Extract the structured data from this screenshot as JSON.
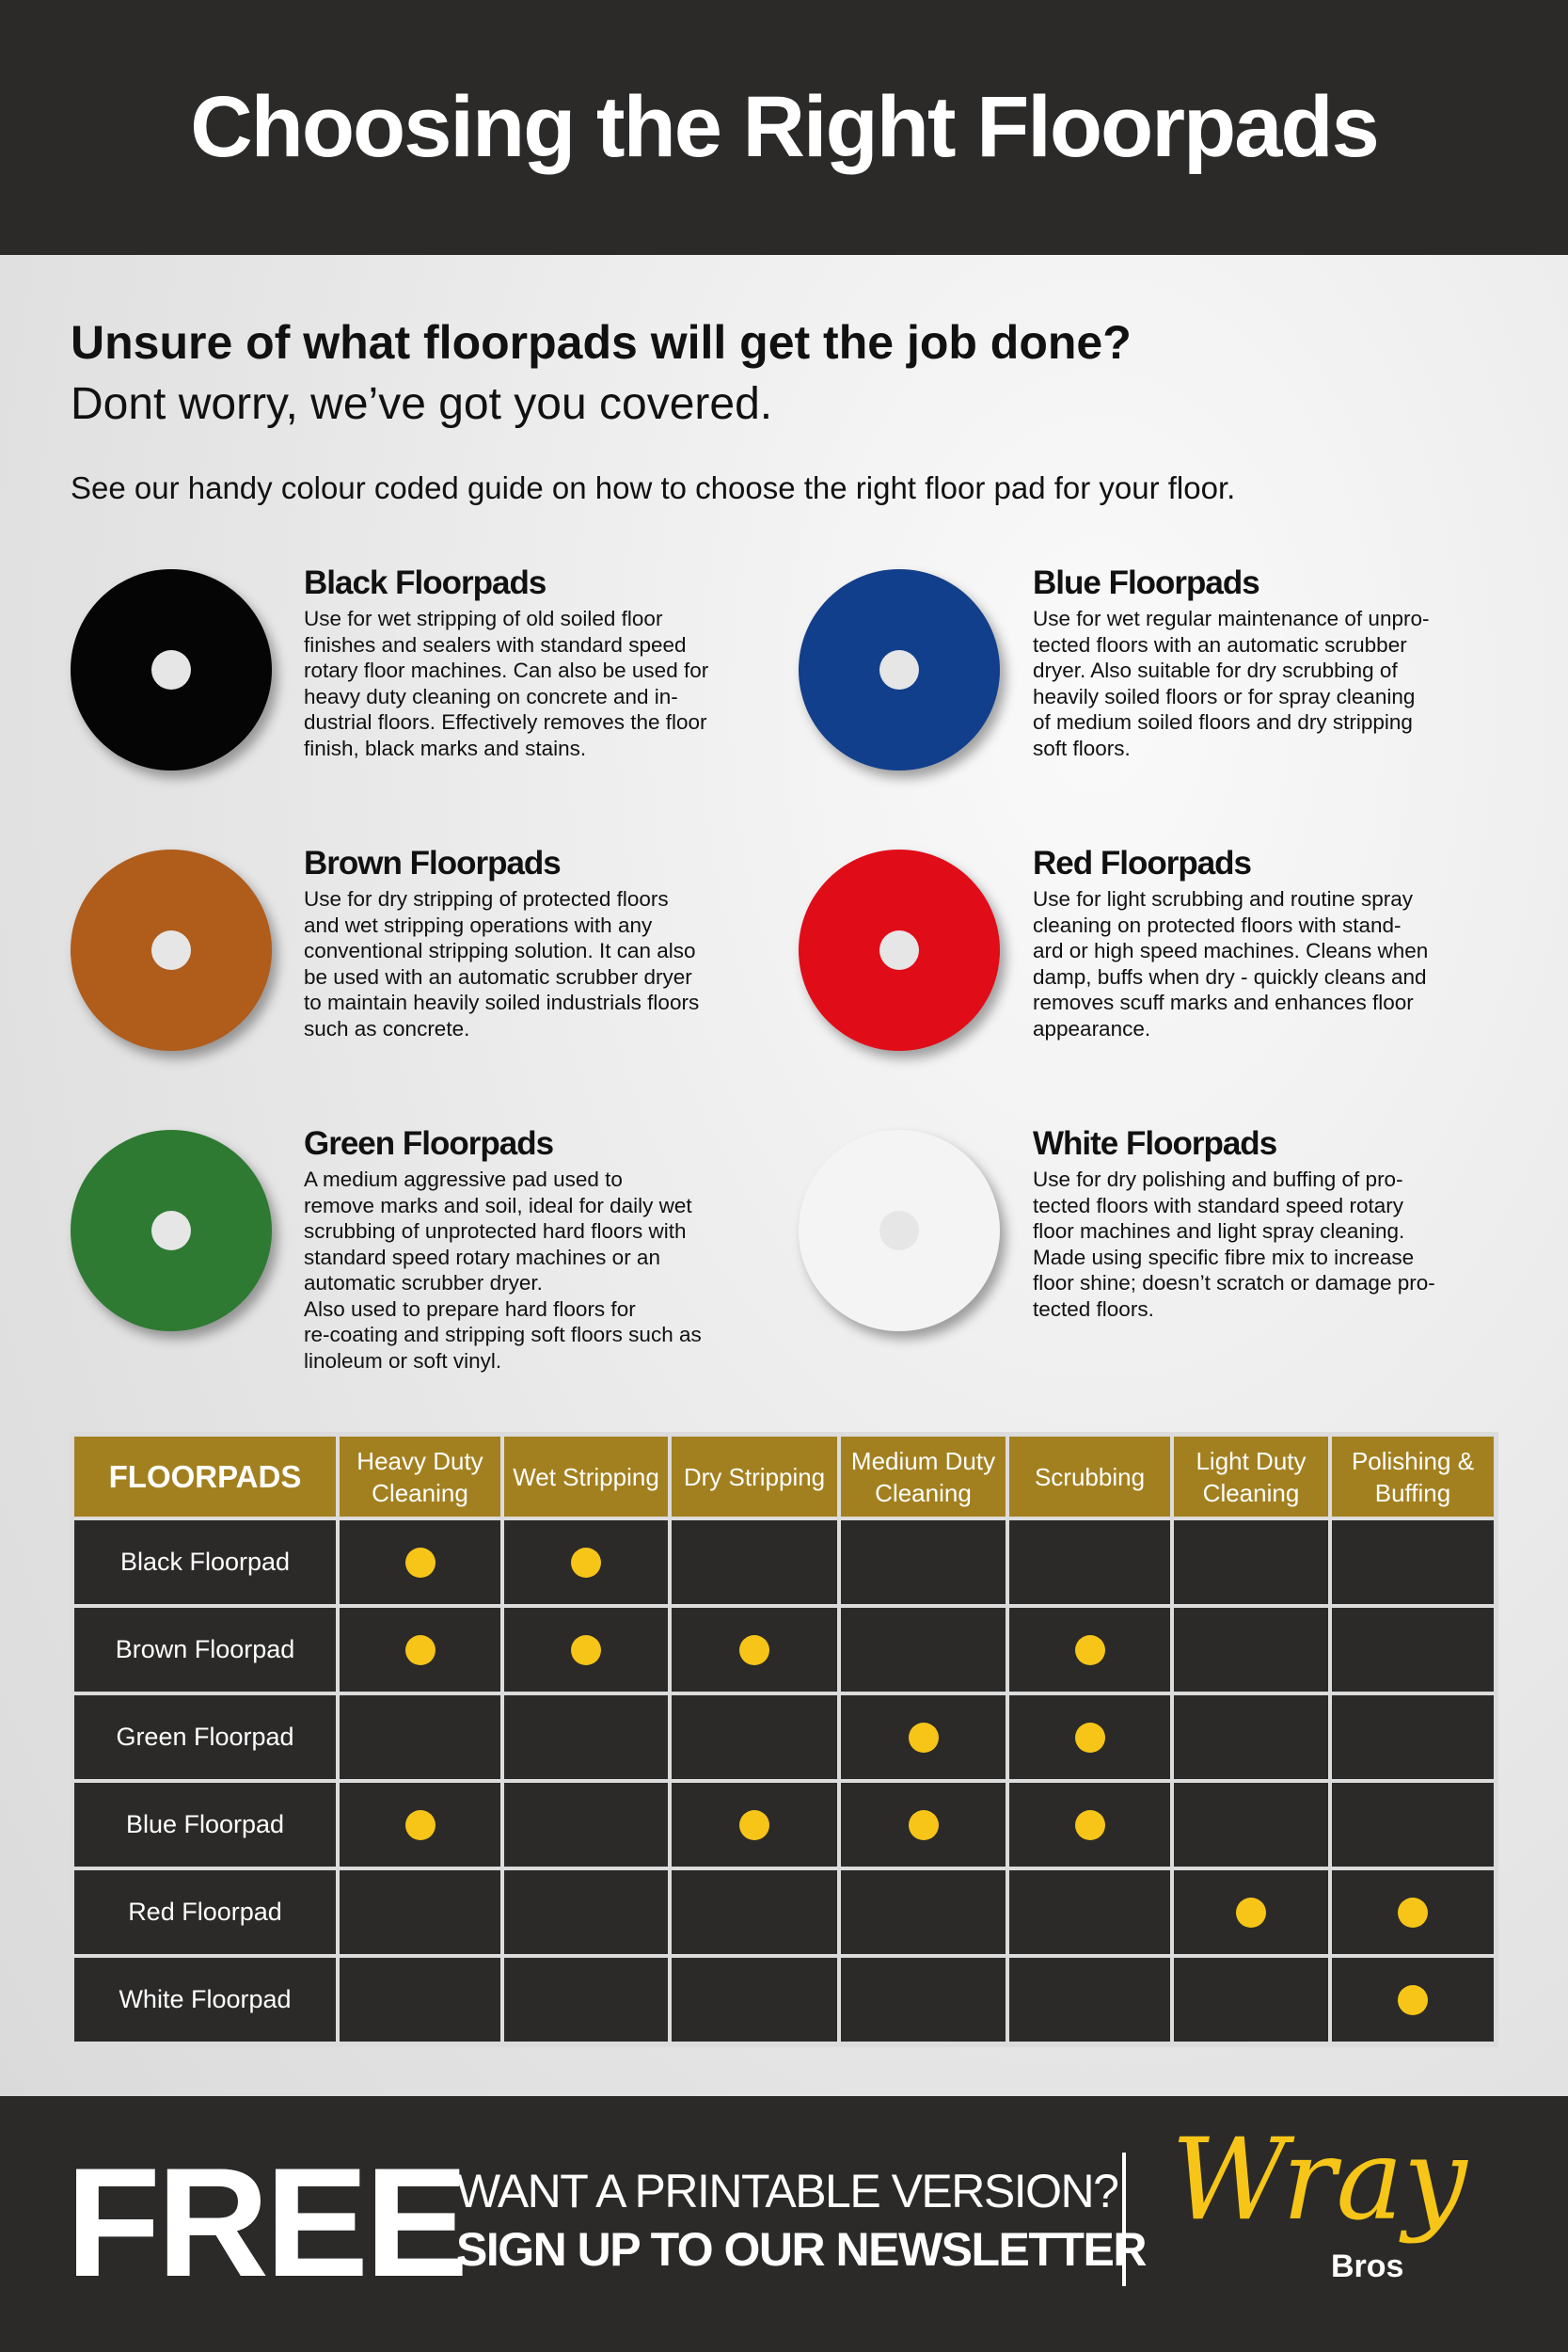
{
  "header": {
    "title": "Choosing the Right Floorpads"
  },
  "intro": {
    "heading": "Unsure of what floorpads will get the job done?",
    "subheading": "Dont worry, we’ve got you covered.",
    "text": "See our handy colour coded guide on how to choose the right floor pad for your floor."
  },
  "pads": [
    {
      "title": "Black Floorpads",
      "color": "#050505",
      "lines": [
        "Use for wet stripping of old soiled floor",
        "finishes and sealers with standard speed",
        "rotary floor machines. Can also be used for",
        "heavy duty cleaning on concrete and in-",
        "dustrial floors. Effectively removes the floor",
        "finish, black marks and stains."
      ]
    },
    {
      "title": "Blue Floorpads",
      "color": "#123f8c",
      "lines": [
        "Use for wet regular maintenance of unpro-",
        "tected floors with an automatic scrubber",
        "dryer. Also suitable for dry scrubbing of",
        "heavily soiled floors or for spray cleaning",
        "of medium soiled floors and dry stripping",
        "soft floors."
      ]
    },
    {
      "title": "Brown Floorpads",
      "color": "#b05c1b",
      "lines": [
        "Use for dry stripping of protected floors",
        "and wet stripping operations with any",
        "conventional stripping solution. It can also",
        "be used with an automatic scrubber dryer",
        "to maintain heavily soiled industrials floors",
        "such as concrete."
      ]
    },
    {
      "title": "Red Floorpads",
      "color": "#e00c18",
      "lines": [
        "Use for light scrubbing and routine spray",
        "cleaning on protected floors with stand-",
        "ard or high speed machines. Cleans when",
        "damp, buffs when dry - quickly cleans and",
        "removes scuff marks and enhances floor",
        "appearance."
      ]
    },
    {
      "title": "Green Floorpads",
      "color": "#2e7a32",
      "lines": [
        "A medium aggressive pad used to",
        "remove marks and soil, ideal for daily wet",
        "scrubbing of unprotected hard floors with",
        "standard speed rotary machines or an",
        "automatic scrubber dryer.",
        "Also used to prepare hard floors for",
        "re-coating and stripping soft floors such as",
        "linoleum or soft vinyl."
      ]
    },
    {
      "title": "White Floorpads",
      "color": "#f4f4f4",
      "lines": [
        "Use for dry polishing and buffing of pro-",
        "tected floors with standard speed rotary",
        "floor machines and light spray cleaning.",
        "Made using specific fibre mix to increase",
        "floor shine; doesn’t scratch or damage pro-",
        "tected floors."
      ]
    }
  ],
  "table": {
    "header": [
      "FLOORPADS",
      "Heavy Duty Cleaning",
      "Wet Stripping",
      "Dry Stripping",
      "Medium Duty Cleaning",
      "Scrubbing",
      "Light Duty Cleaning",
      "Polishing & Buffing"
    ],
    "rows": [
      {
        "name": "Black Floorpad",
        "cells": [
          true,
          true,
          false,
          false,
          false,
          false,
          false
        ]
      },
      {
        "name": "Brown Floorpad",
        "cells": [
          true,
          true,
          true,
          false,
          true,
          false,
          false
        ]
      },
      {
        "name": "Green Floorpad",
        "cells": [
          false,
          false,
          false,
          true,
          true,
          false,
          false
        ]
      },
      {
        "name": "Blue Floorpad",
        "cells": [
          true,
          false,
          true,
          true,
          true,
          false,
          false
        ]
      },
      {
        "name": "Red Floorpad",
        "cells": [
          false,
          false,
          false,
          false,
          false,
          true,
          true
        ]
      },
      {
        "name": "White Floorpad",
        "cells": [
          false,
          false,
          false,
          false,
          false,
          false,
          true
        ]
      }
    ]
  },
  "footer": {
    "free": "FREE",
    "line1": "WANT A PRINTABLE VERSION?",
    "line2": "SIGN UP TO OUR NEWSLETTER",
    "logo": "Wray",
    "logo_sub": "Bros"
  }
}
